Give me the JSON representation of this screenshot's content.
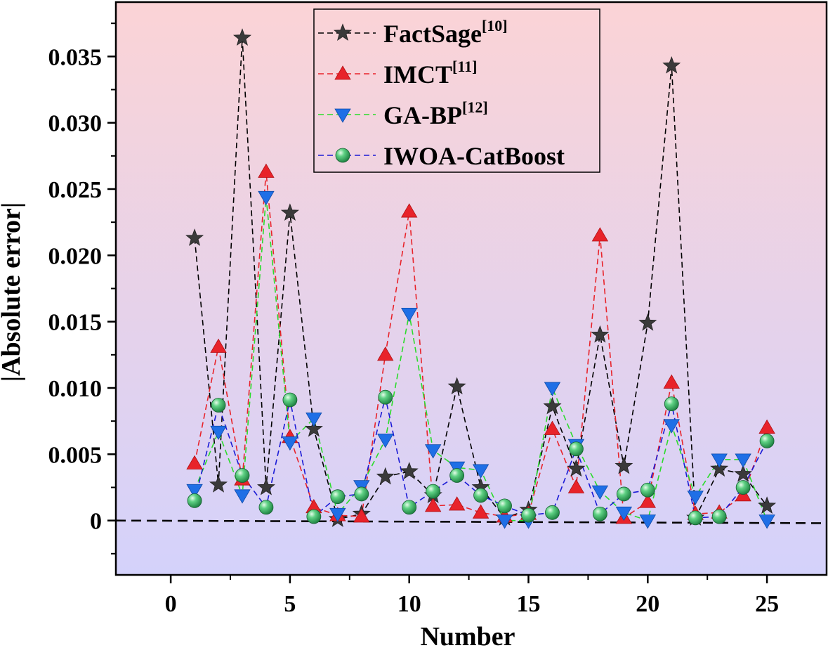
{
  "chart_data": {
    "type": "line",
    "title": "",
    "xlabel": "Number",
    "ylabel": "|Absolute error|",
    "xlim": [
      -2.3,
      27.5
    ],
    "ylim": [
      -0.0041,
      0.0391
    ],
    "x_ticks": [
      0,
      5,
      10,
      15,
      20,
      25
    ],
    "x_tick_labels": [
      "0",
      "5",
      "10",
      "15",
      "20",
      "25"
    ],
    "y_ticks": [
      0,
      0.005,
      0.01,
      0.015,
      0.02,
      0.025,
      0.03,
      0.035
    ],
    "y_tick_labels": [
      "0",
      "0.005",
      "0.010",
      "0.015",
      "0.020",
      "0.025",
      "0.030",
      "0.035"
    ],
    "reference_line": {
      "from": [
        -2.3,
        0.0
      ],
      "to": [
        27.5,
        -0.0002
      ],
      "style": "dashed",
      "color": "#000000"
    },
    "background_gradient": {
      "top": "#fbd3d6",
      "bottom": "#d4d2fb"
    },
    "legend_position": "top-center",
    "x": [
      1,
      2,
      3,
      4,
      5,
      6,
      7,
      8,
      9,
      10,
      11,
      12,
      13,
      14,
      15,
      16,
      17,
      18,
      19,
      20,
      21,
      22,
      23,
      24,
      25
    ],
    "series": [
      {
        "name": "FactSage",
        "ref": "[10]",
        "color": "#000000",
        "marker": "star",
        "marker_color": "#3a3a3a",
        "values": [
          0.0213,
          0.0027,
          0.0364,
          0.0025,
          0.0232,
          0.0069,
          0.0001,
          0.0005,
          0.0033,
          0.0037,
          0.0019,
          0.0101,
          0.0025,
          0.0002,
          0.0008,
          0.0086,
          0.0039,
          0.014,
          0.0041,
          0.0149,
          0.0343,
          0.0002,
          0.0039,
          0.0035,
          0.0011
        ]
      },
      {
        "name": "IMCT",
        "ref": "[11]",
        "color": "#e8232a",
        "marker": "triangle-up",
        "marker_color": "#e8232a",
        "values": [
          0.0043,
          0.0131,
          0.0031,
          0.0263,
          0.0063,
          0.001,
          0.0004,
          0.0003,
          0.0125,
          0.0233,
          0.0011,
          0.0012,
          0.0006,
          0.0003,
          0.0005,
          0.0069,
          0.0025,
          0.0215,
          0.0002,
          0.0014,
          0.0104,
          0.0005,
          0.0006,
          0.0019,
          0.007
        ]
      },
      {
        "name": "GA-BP",
        "ref": "[12]",
        "color": "#2bdc2b",
        "marker": "triangle-down",
        "marker_color": "#1f6fe6",
        "values": [
          0.0023,
          0.0067,
          0.0019,
          0.0244,
          0.0059,
          0.0077,
          0.0005,
          0.0026,
          0.0061,
          0.0156,
          0.0053,
          0.004,
          0.0038,
          0.0,
          0.0,
          0.01,
          0.0057,
          0.0022,
          0.0006,
          0.0,
          0.0072,
          0.0018,
          0.0046,
          0.0046,
          0.0
        ]
      },
      {
        "name": "IWOA-CatBoost",
        "ref": "",
        "color": "#1a1ad6",
        "marker": "sphere",
        "marker_color": "#2eaa5c",
        "values": [
          0.0015,
          0.0087,
          0.0034,
          0.001,
          0.0091,
          0.0003,
          0.0018,
          0.002,
          0.0093,
          0.001,
          0.0022,
          0.0034,
          0.0019,
          0.0011,
          0.0004,
          0.0006,
          0.0054,
          0.0005,
          0.002,
          0.0023,
          0.0088,
          0.0002,
          0.0003,
          0.0025,
          0.006
        ]
      }
    ]
  }
}
